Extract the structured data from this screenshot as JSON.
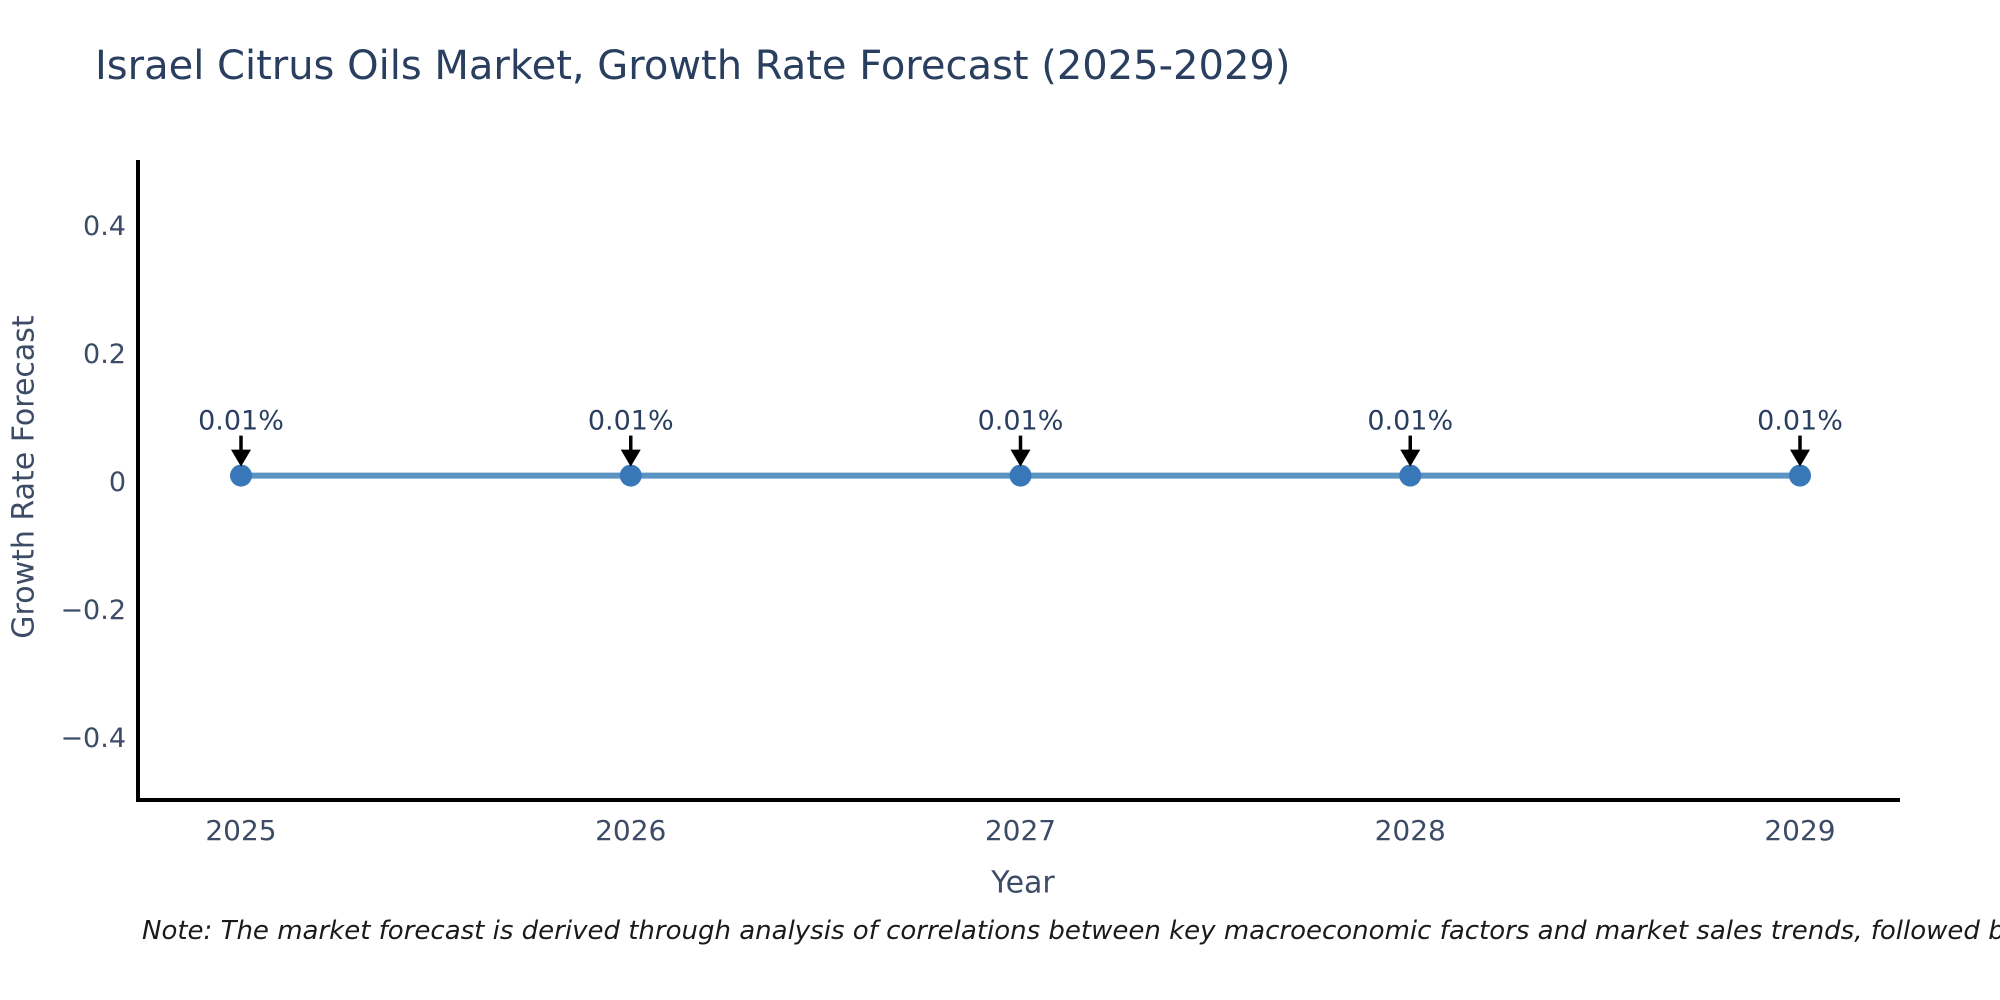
{
  "chart_data": {
    "type": "line",
    "title": "Israel Citrus Oils Market, Growth Rate Forecast (2025-2029)",
    "xlabel": "Year",
    "ylabel": "Growth Rate Forecast",
    "categories": [
      "2025",
      "2026",
      "2027",
      "2028",
      "2029"
    ],
    "values": [
      0.01,
      0.01,
      0.01,
      0.01,
      0.01
    ],
    "point_labels": [
      "0.01%",
      "0.01%",
      "0.01%",
      "0.01%",
      "0.01%"
    ],
    "yticks": [
      0.4,
      0.2,
      0,
      -0.2,
      -0.4
    ],
    "ytick_labels": [
      "0.4",
      "0.2",
      "0",
      "−0.2",
      "−0.4"
    ],
    "ylim": [
      -0.5,
      0.5
    ],
    "grid": false,
    "legend": "none",
    "annotation_style": "black-down-arrow"
  },
  "note": "Note: The market forecast is derived through analysis of correlations between key macroeconomic factors and market sales trends, followed by predictive modeling to project future sa",
  "colors": {
    "background": "#ffffff",
    "title": "#2a3f5f",
    "axis_title": "#3d4c66",
    "tick_label": "#3d4c66",
    "axis_line": "#000000",
    "line": "#5b93c2",
    "marker": "#3878b8",
    "arrow": "#000000",
    "annotation_text": "#2a3f5f",
    "note_text": "#1a1a1a"
  }
}
